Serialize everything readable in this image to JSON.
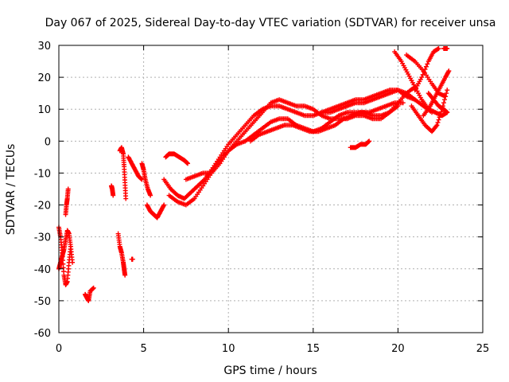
{
  "chart_data": {
    "type": "scatter",
    "title": "Day 067 of 2025, Sidereal Day-to-day VTEC variation (SDTVAR) for receiver unsa",
    "xlabel": "GPS time / hours",
    "ylabel": "SDTVAR / TECUs",
    "xlim": [
      0,
      25
    ],
    "ylim": [
      -60,
      30
    ],
    "x_ticks": [
      0,
      5,
      10,
      15,
      20,
      25
    ],
    "y_ticks": [
      -60,
      -50,
      -40,
      -30,
      -20,
      -10,
      0,
      10,
      20,
      30
    ],
    "grid": true,
    "marker": "+",
    "color": "#ff0000",
    "segments": [
      {
        "x": [
          0.0,
          0.1,
          0.2,
          0.3,
          0.4,
          0.5,
          0.6,
          0.7
        ],
        "y": [
          -27,
          -30,
          -35,
          -42,
          -45,
          -44,
          -38,
          -33
        ]
      },
      {
        "x": [
          0.0,
          0.1,
          0.2,
          0.3,
          0.4,
          0.5,
          0.6,
          0.7,
          0.8
        ],
        "y": [
          -40,
          -38,
          -36,
          -34,
          -31,
          -28,
          -29,
          -33,
          -38
        ]
      },
      {
        "x": [
          0.4,
          0.45,
          0.5,
          0.55
        ],
        "y": [
          -23,
          -20,
          -18,
          -15
        ]
      },
      {
        "x": [
          1.55,
          1.65,
          1.75,
          1.85,
          2.05
        ],
        "y": [
          -48,
          -49,
          -50,
          -47,
          -46
        ]
      },
      {
        "x": [
          3.1,
          3.15,
          3.2
        ],
        "y": [
          -14,
          -15,
          -17
        ]
      },
      {
        "x": [
          3.5,
          3.6,
          3.7,
          3.8,
          3.85,
          3.9
        ],
        "y": [
          -29,
          -33,
          -35,
          -38,
          -40,
          -42
        ]
      },
      {
        "x": [
          3.6,
          3.7,
          3.8,
          3.85,
          3.9,
          3.95
        ],
        "y": [
          -3,
          -2,
          -4,
          -8,
          -13,
          -18
        ]
      },
      {
        "x": [
          4.1,
          4.3,
          4.5,
          4.7,
          4.9
        ],
        "y": [
          -5,
          -7,
          -9,
          -11,
          -12
        ]
      },
      {
        "x": [
          4.3,
          4.35
        ],
        "y": [
          -37,
          -37
        ]
      },
      {
        "x": [
          4.9,
          5.0,
          5.1,
          5.25,
          5.4
        ],
        "y": [
          -7,
          -9,
          -12,
          -15,
          -17
        ]
      },
      {
        "x": [
          5.2,
          5.4,
          5.6,
          5.8,
          6.0,
          6.2
        ],
        "y": [
          -20,
          -22,
          -23,
          -24,
          -22,
          -20
        ]
      },
      {
        "x": [
          6.3,
          6.5,
          6.8,
          7.1,
          7.4,
          7.6
        ],
        "y": [
          -5,
          -4,
          -4,
          -5,
          -6,
          -7
        ]
      },
      {
        "x": [
          6.2,
          6.6,
          7.0,
          7.4,
          7.8,
          8.2,
          8.6,
          9.0,
          9.5,
          10.0,
          10.5,
          11.0,
          11.5,
          12.0,
          12.5,
          13.0,
          13.5,
          14.0,
          14.5,
          15.0,
          15.5,
          16.0,
          16.5,
          17.0,
          17.5,
          18.0,
          18.5,
          19.0,
          19.5,
          20.0,
          20.5,
          21.0,
          21.5,
          22.0
        ],
        "y": [
          -12,
          -15,
          -17,
          -18,
          -16,
          -14,
          -12,
          -9,
          -5,
          -1,
          2,
          5,
          8,
          10,
          11,
          11,
          10,
          9,
          8,
          8,
          9,
          9,
          10,
          11,
          12,
          12,
          13,
          14,
          15,
          16,
          15,
          13,
          11,
          9
        ]
      },
      {
        "x": [
          6.5,
          7.0,
          7.5,
          8.0,
          8.5,
          9.0,
          9.5,
          10.0,
          10.5,
          11.0,
          11.5,
          12.0,
          12.5,
          13.0,
          13.5,
          14.0,
          14.5,
          15.0,
          15.5,
          16.0,
          16.5,
          17.0,
          17.5,
          18.0,
          18.5,
          19.0,
          19.5,
          20.0,
          20.5,
          21.0
        ],
        "y": [
          -17,
          -19,
          -20,
          -18,
          -14,
          -10,
          -6,
          -3,
          0,
          3,
          6,
          9,
          12,
          13,
          12,
          11,
          11,
          10,
          8,
          7,
          7,
          7,
          8,
          8,
          7,
          7,
          9,
          12,
          15,
          17
        ]
      },
      {
        "x": [
          7.5,
          8.0,
          8.5,
          9.0,
          9.5,
          10.0,
          10.5,
          11.0,
          11.5,
          12.0,
          12.5,
          13.0,
          13.5,
          14.0,
          14.5,
          15.0,
          15.5,
          16.0,
          16.5,
          17.0,
          17.5,
          18.0,
          18.5,
          19.0,
          19.5,
          20.0
        ],
        "y": [
          -12,
          -11,
          -10,
          -10,
          -7,
          -3,
          -1,
          0,
          2,
          4,
          6,
          7,
          7,
          5,
          4,
          3,
          4,
          6,
          8,
          9,
          9,
          9,
          8,
          8,
          9,
          11
        ]
      },
      {
        "x": [
          11.3,
          11.8,
          12.3,
          12.8,
          13.3,
          13.8,
          14.3,
          14.8,
          15.3,
          15.8,
          16.3,
          16.8,
          17.3,
          17.8,
          18.3,
          18.8,
          19.3,
          19.8,
          20.3
        ],
        "y": [
          0,
          2,
          3,
          4,
          5,
          5,
          4,
          3,
          3,
          4,
          5,
          7,
          8,
          9,
          9,
          10,
          11,
          12,
          12
        ]
      },
      {
        "x": [
          15.5,
          16.0,
          16.5,
          17.0,
          17.5,
          18.0,
          18.5,
          19.0,
          19.5,
          20.0,
          20.5,
          21.0
        ],
        "y": [
          9,
          10,
          11,
          12,
          13,
          13,
          14,
          15,
          16,
          16,
          14,
          13
        ]
      },
      {
        "x": [
          17.2,
          17.5,
          17.8,
          18.1,
          18.3
        ],
        "y": [
          -2,
          -2,
          -1,
          -1,
          0
        ]
      },
      {
        "x": [
          19.8,
          20.2,
          20.6,
          21.0,
          21.4,
          21.8,
          22.2,
          22.6,
          22.9
        ],
        "y": [
          28,
          25,
          21,
          17,
          13,
          10,
          9,
          8,
          9
        ]
      },
      {
        "x": [
          20.5,
          21.0,
          21.5,
          22.0,
          22.4,
          22.8
        ],
        "y": [
          27,
          25,
          22,
          18,
          15,
          14
        ]
      },
      {
        "x": [
          20.8,
          21.2,
          21.6,
          22.0,
          22.3,
          22.6,
          22.9
        ],
        "y": [
          11,
          8,
          5,
          3,
          5,
          10,
          16
        ]
      },
      {
        "x": [
          21.0,
          21.4,
          21.8,
          22.1,
          22.4
        ],
        "y": [
          16,
          20,
          25,
          28,
          29
        ]
      },
      {
        "x": [
          21.5,
          21.9,
          22.2,
          22.5,
          22.8,
          23.0
        ],
        "y": [
          8,
          11,
          14,
          17,
          20,
          22
        ]
      },
      {
        "x": [
          22.7,
          22.9
        ],
        "y": [
          29,
          29
        ]
      },
      {
        "x": [
          21.8,
          22.1,
          22.4,
          22.7,
          22.9
        ],
        "y": [
          15,
          13,
          11,
          10,
          9
        ]
      }
    ]
  }
}
